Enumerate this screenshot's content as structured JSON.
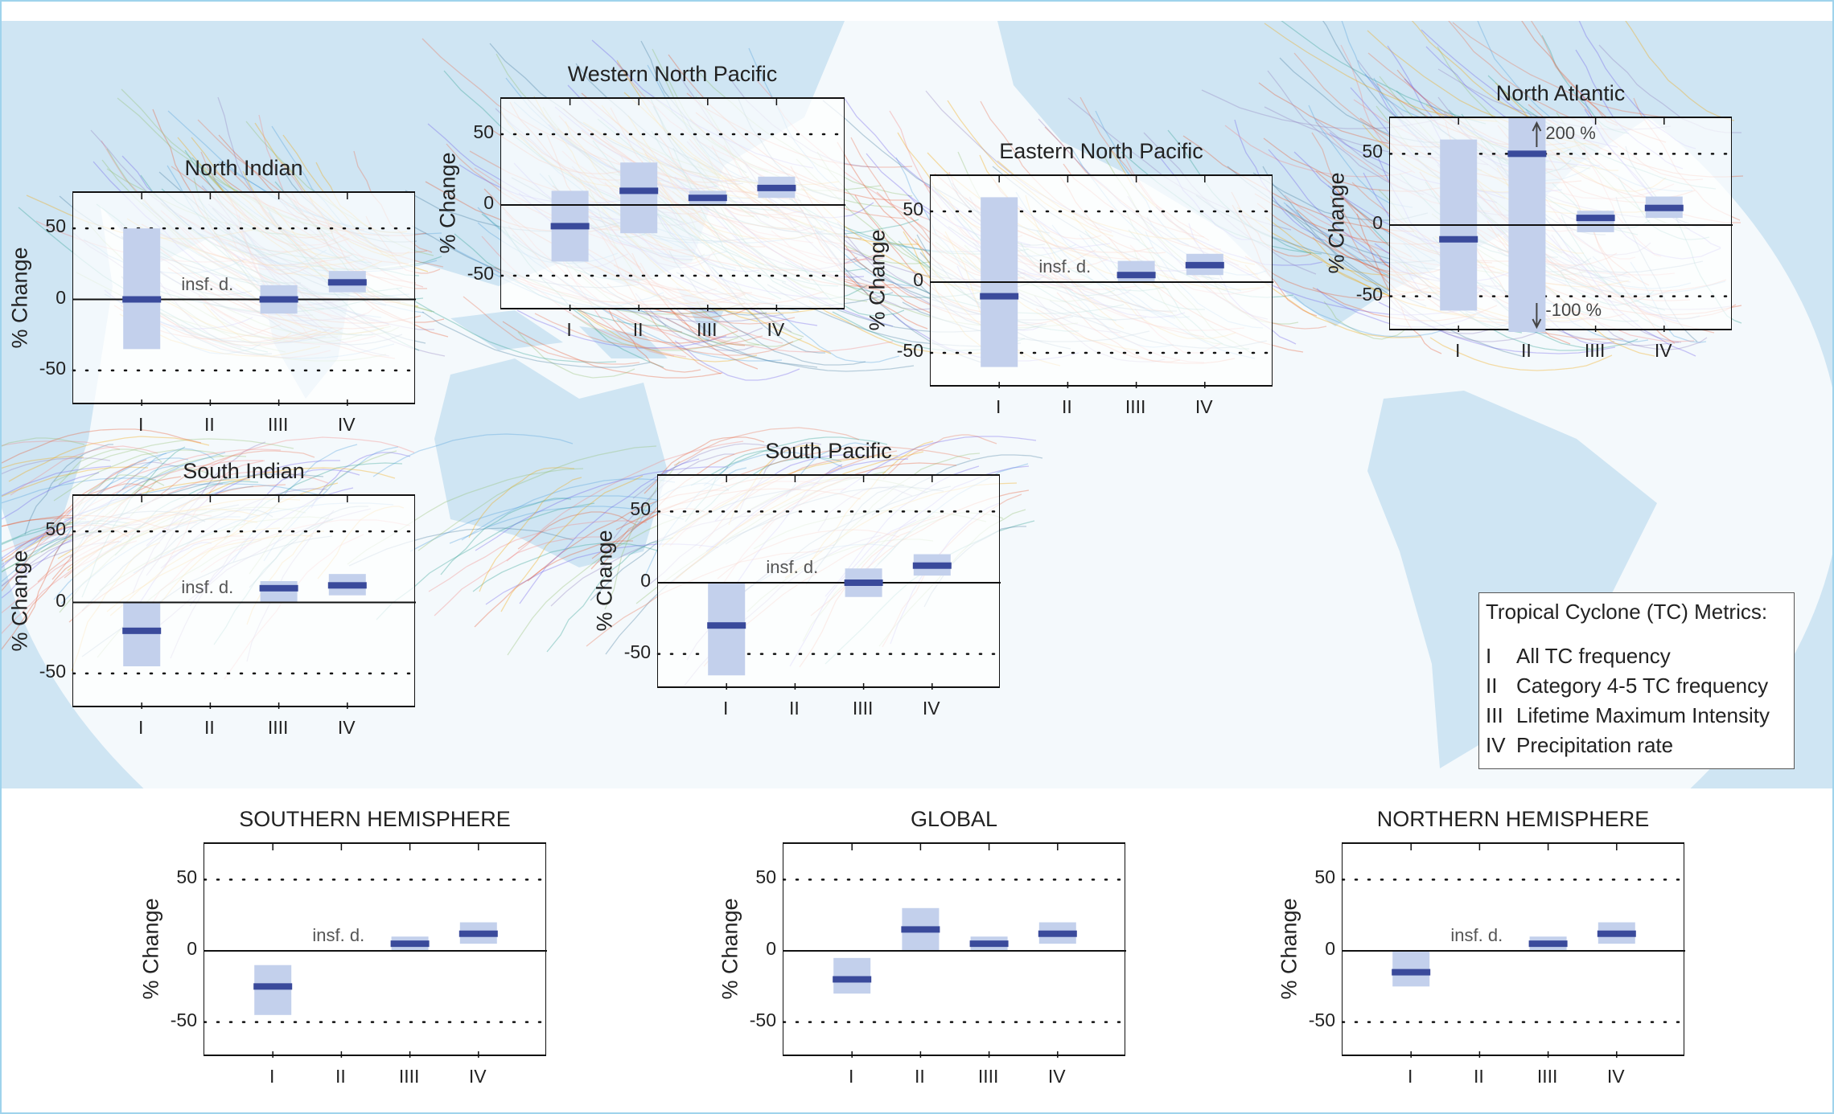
{
  "legend": {
    "title": "Tropical Cyclone (TC) Metrics:",
    "items": [
      {
        "numeral": "I",
        "label": "All TC frequency"
      },
      {
        "numeral": "II",
        "label": "Category 4-5 TC frequency"
      },
      {
        "numeral": "III",
        "label": "Lifetime Maximum Intensity"
      },
      {
        "numeral": "IV",
        "label": "Precipitation rate"
      }
    ]
  },
  "colors": {
    "range_fill": "#c3d0ec",
    "median": "#3a4a9b",
    "land": "#cfe5f3",
    "ocean": "#f4f9fc"
  },
  "chart_data": [
    {
      "id": "north-indian",
      "type": "bar",
      "title": "North Indian",
      "ylabel": "% Change",
      "ylim": [
        -75,
        75
      ],
      "yticks": [
        "50",
        "0",
        "-50"
      ],
      "categories": [
        "I",
        "II",
        "IIII",
        "IV"
      ],
      "median": [
        0,
        null,
        0,
        12
      ],
      "low": [
        -35,
        null,
        -10,
        5
      ],
      "high": [
        50,
        null,
        10,
        20
      ],
      "insufficient_data": [
        false,
        true,
        false,
        false
      ],
      "insf_label": "insf. d."
    },
    {
      "id": "western-north-pacific",
      "type": "bar",
      "title": "Western North Pacific",
      "ylabel": "% Change",
      "ylim": [
        -75,
        75
      ],
      "yticks": [
        "50",
        "0",
        "-50"
      ],
      "categories": [
        "I",
        "II",
        "IIII",
        "IV"
      ],
      "median": [
        -15,
        10,
        5,
        12
      ],
      "low": [
        -40,
        -20,
        0,
        5
      ],
      "high": [
        10,
        30,
        10,
        20
      ],
      "insufficient_data": [
        false,
        false,
        false,
        false
      ]
    },
    {
      "id": "eastern-north-pacific",
      "type": "bar",
      "title": "Eastern North Pacific",
      "ylabel": "% Change",
      "ylim": [
        -75,
        75
      ],
      "yticks": [
        "50",
        "0",
        "-50"
      ],
      "categories": [
        "I",
        "II",
        "IIII",
        "IV"
      ],
      "median": [
        -10,
        null,
        5,
        12
      ],
      "low": [
        -60,
        null,
        0,
        5
      ],
      "high": [
        60,
        null,
        15,
        20
      ],
      "insufficient_data": [
        false,
        true,
        false,
        false
      ],
      "insf_label": "insf. d."
    },
    {
      "id": "north-atlantic",
      "type": "bar",
      "title": "North Atlantic",
      "ylabel": "% Change",
      "ylim": [
        -75,
        75
      ],
      "yticks": [
        "50",
        "0",
        "-50"
      ],
      "categories": [
        "I",
        "II",
        "IIII",
        "IV"
      ],
      "median": [
        -10,
        50,
        5,
        12
      ],
      "low": [
        -60,
        -100,
        -5,
        5
      ],
      "high": [
        60,
        200,
        10,
        20
      ],
      "insufficient_data": [
        false,
        false,
        false,
        false
      ],
      "annotations": {
        "upper": "200 %",
        "lower": "-100 %"
      }
    },
    {
      "id": "south-indian",
      "type": "bar",
      "title": "South Indian",
      "ylabel": "% Change",
      "ylim": [
        -75,
        75
      ],
      "yticks": [
        "50",
        "0",
        "-50"
      ],
      "categories": [
        "I",
        "II",
        "IIII",
        "IV"
      ],
      "median": [
        -20,
        null,
        10,
        12
      ],
      "low": [
        -45,
        null,
        0,
        5
      ],
      "high": [
        0,
        null,
        15,
        20
      ],
      "insufficient_data": [
        false,
        true,
        false,
        false
      ],
      "insf_label": "insf. d."
    },
    {
      "id": "south-pacific",
      "type": "bar",
      "title": "South Pacific",
      "ylabel": "% Change",
      "ylim": [
        -75,
        75
      ],
      "yticks": [
        "50",
        "0",
        "-50"
      ],
      "categories": [
        "I",
        "II",
        "IIII",
        "IV"
      ],
      "median": [
        -30,
        null,
        0,
        12
      ],
      "low": [
        -65,
        null,
        -10,
        5
      ],
      "high": [
        0,
        null,
        10,
        20
      ],
      "insufficient_data": [
        false,
        true,
        false,
        false
      ],
      "insf_label": "insf. d."
    },
    {
      "id": "southern-hemisphere",
      "type": "bar",
      "title": "SOUTHERN HEMISPHERE",
      "ylabel": "% Change",
      "ylim": [
        -75,
        75
      ],
      "yticks": [
        "50",
        "0",
        "-50"
      ],
      "categories": [
        "I",
        "II",
        "IIII",
        "IV"
      ],
      "median": [
        -25,
        null,
        5,
        12
      ],
      "low": [
        -45,
        null,
        0,
        5
      ],
      "high": [
        -10,
        null,
        10,
        20
      ],
      "insufficient_data": [
        false,
        true,
        false,
        false
      ],
      "insf_label": "insf. d."
    },
    {
      "id": "global",
      "type": "bar",
      "title": "GLOBAL",
      "ylabel": "% Change",
      "ylim": [
        -75,
        75
      ],
      "yticks": [
        "50",
        "0",
        "-50"
      ],
      "categories": [
        "I",
        "II",
        "IIII",
        "IV"
      ],
      "median": [
        -20,
        15,
        5,
        12
      ],
      "low": [
        -30,
        0,
        0,
        5
      ],
      "high": [
        -5,
        30,
        10,
        20
      ],
      "insufficient_data": [
        false,
        false,
        false,
        false
      ]
    },
    {
      "id": "northern-hemisphere",
      "type": "bar",
      "title": "NORTHERN HEMISPHERE",
      "ylabel": "% Change",
      "ylim": [
        -75,
        75
      ],
      "yticks": [
        "50",
        "0",
        "-50"
      ],
      "categories": [
        "I",
        "II",
        "IIII",
        "IV"
      ],
      "median": [
        -15,
        null,
        5,
        12
      ],
      "low": [
        -25,
        null,
        0,
        5
      ],
      "high": [
        0,
        null,
        10,
        20
      ],
      "insufficient_data": [
        false,
        true,
        false,
        false
      ],
      "insf_label": "insf. d."
    }
  ]
}
